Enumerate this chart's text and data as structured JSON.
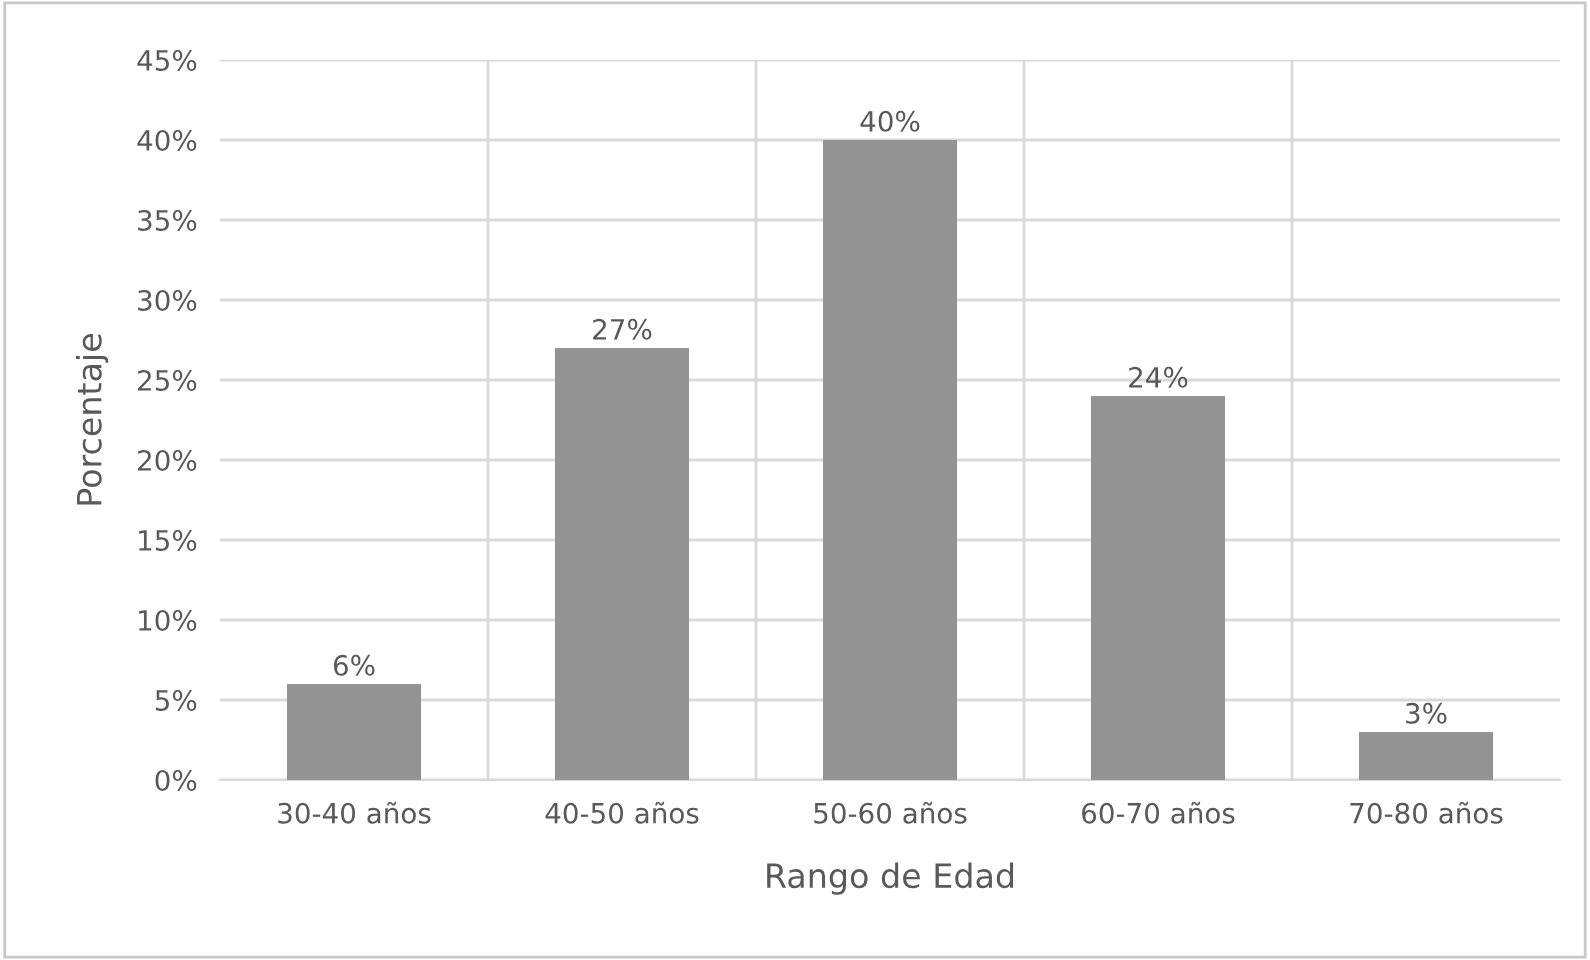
{
  "chart_data": {
    "type": "bar",
    "xlabel": "Rango de Edad",
    "ylabel": "Porcentaje",
    "categories": [
      "30-40 años",
      "40-50 años",
      "50-60 años",
      "60-70 años",
      "70-80 años"
    ],
    "values": [
      6,
      27,
      40,
      24,
      3
    ],
    "value_labels": [
      "6%",
      "27%",
      "40%",
      "24%",
      "3%"
    ],
    "color": "#939393",
    "ylim": [
      0,
      45
    ],
    "yticks": [
      {
        "value": 0,
        "label": "0%"
      },
      {
        "value": 5,
        "label": "5%"
      },
      {
        "value": 10,
        "label": "10%"
      },
      {
        "value": 15,
        "label": "15%"
      },
      {
        "value": 20,
        "label": "20%"
      },
      {
        "value": 25,
        "label": "25%"
      },
      {
        "value": 30,
        "label": "30%"
      },
      {
        "value": 35,
        "label": "35%"
      },
      {
        "value": 40,
        "label": "40%"
      },
      {
        "value": 45,
        "label": "45%"
      }
    ],
    "grid": true
  }
}
